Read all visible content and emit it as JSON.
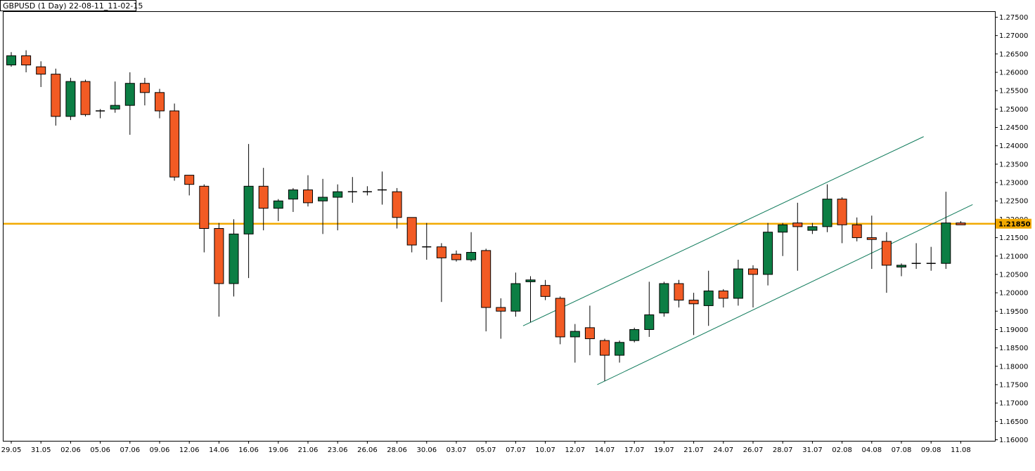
{
  "header": {
    "title": "GBPUSD (1 Day) 22-08-11_11-02-15"
  },
  "colors": {
    "bull": "#0c7e44",
    "bear": "#f25b24",
    "wick": "#000000",
    "channel": "#0e7a5a",
    "level": "#f2a900",
    "level_label_bg": "#f2a900",
    "border": "#000000"
  },
  "chart_data": {
    "type": "candlestick",
    "symbol": "GBPUSD",
    "timeframe": "1 Day",
    "ylim": [
      1.1575,
      1.2775
    ],
    "y_ticks": [
      "1.16000",
      "1.16500",
      "1.17000",
      "1.17500",
      "1.18000",
      "1.18500",
      "1.19000",
      "1.19500",
      "1.20000",
      "1.20500",
      "1.21000",
      "1.21500",
      "1.22000",
      "1.22500",
      "1.23000",
      "1.23500",
      "1.24000",
      "1.24500",
      "1.25000",
      "1.25500",
      "1.26000",
      "1.26500",
      "1.27000",
      "1.27500"
    ],
    "x_labels": [
      {
        "i": 0,
        "label": "29.05"
      },
      {
        "i": 2,
        "label": "31.05"
      },
      {
        "i": 4,
        "label": "02.06"
      },
      {
        "i": 6,
        "label": "05.06"
      },
      {
        "i": 8,
        "label": "07.06"
      },
      {
        "i": 10,
        "label": "09.06"
      },
      {
        "i": 12,
        "label": "12.06"
      },
      {
        "i": 14,
        "label": "14.06"
      },
      {
        "i": 16,
        "label": "16.06"
      },
      {
        "i": 18,
        "label": "19.06"
      },
      {
        "i": 20,
        "label": "21.06"
      },
      {
        "i": 22,
        "label": "23.06"
      },
      {
        "i": 24,
        "label": "26.06"
      },
      {
        "i": 26,
        "label": "28.06"
      },
      {
        "i": 28,
        "label": "30.06"
      },
      {
        "i": 30,
        "label": "03.07"
      },
      {
        "i": 32,
        "label": "05.07"
      },
      {
        "i": 34,
        "label": "07.07"
      },
      {
        "i": 36,
        "label": "10.07"
      },
      {
        "i": 38,
        "label": "12.07"
      },
      {
        "i": 40,
        "label": "14.07"
      },
      {
        "i": 42,
        "label": "17.07"
      },
      {
        "i": 44,
        "label": "19.07"
      },
      {
        "i": 46,
        "label": "21.07"
      },
      {
        "i": 48,
        "label": "24.07"
      },
      {
        "i": 50,
        "label": "26.07"
      },
      {
        "i": 52,
        "label": "28.07"
      },
      {
        "i": 54,
        "label": "31.07"
      },
      {
        "i": 56,
        "label": "02.08"
      },
      {
        "i": 58,
        "label": "04.08"
      },
      {
        "i": 60,
        "label": "07.08"
      },
      {
        "i": 62,
        "label": "09.08"
      },
      {
        "i": 64,
        "label": "11.08"
      }
    ],
    "candles": [
      {
        "o": 1.262,
        "h": 1.2655,
        "l": 1.2615,
        "c": 1.2645
      },
      {
        "o": 1.2645,
        "h": 1.266,
        "l": 1.26,
        "c": 1.262
      },
      {
        "o": 1.2615,
        "h": 1.263,
        "l": 1.256,
        "c": 1.2595
      },
      {
        "o": 1.2595,
        "h": 1.261,
        "l": 1.2455,
        "c": 1.248
      },
      {
        "o": 1.248,
        "h": 1.2585,
        "l": 1.247,
        "c": 1.2575
      },
      {
        "o": 1.2575,
        "h": 1.258,
        "l": 1.248,
        "c": 1.2485
      },
      {
        "o": 1.2495,
        "h": 1.25,
        "l": 1.2475,
        "c": 1.2495
      },
      {
        "o": 1.25,
        "h": 1.2575,
        "l": 1.249,
        "c": 1.251
      },
      {
        "o": 1.251,
        "h": 1.26,
        "l": 1.243,
        "c": 1.257
      },
      {
        "o": 1.257,
        "h": 1.2585,
        "l": 1.251,
        "c": 1.2545
      },
      {
        "o": 1.2545,
        "h": 1.2555,
        "l": 1.2475,
        "c": 1.2495
      },
      {
        "o": 1.2495,
        "h": 1.2515,
        "l": 1.2305,
        "c": 1.2315
      },
      {
        "o": 1.232,
        "h": 1.232,
        "l": 1.2265,
        "c": 1.2295
      },
      {
        "o": 1.229,
        "h": 1.2295,
        "l": 1.211,
        "c": 1.2175
      },
      {
        "o": 1.2175,
        "h": 1.219,
        "l": 1.1935,
        "c": 1.2025
      },
      {
        "o": 1.2025,
        "h": 1.22,
        "l": 1.199,
        "c": 1.216
      },
      {
        "o": 1.216,
        "h": 1.2405,
        "l": 1.204,
        "c": 1.229
      },
      {
        "o": 1.229,
        "h": 1.234,
        "l": 1.217,
        "c": 1.223
      },
      {
        "o": 1.223,
        "h": 1.2255,
        "l": 1.2195,
        "c": 1.225
      },
      {
        "o": 1.2255,
        "h": 1.2285,
        "l": 1.222,
        "c": 1.228
      },
      {
        "o": 1.228,
        "h": 1.232,
        "l": 1.2235,
        "c": 1.2245
      },
      {
        "o": 1.225,
        "h": 1.231,
        "l": 1.216,
        "c": 1.226
      },
      {
        "o": 1.226,
        "h": 1.2295,
        "l": 1.217,
        "c": 1.2275
      },
      {
        "o": 1.2275,
        "h": 1.2315,
        "l": 1.2245,
        "c": 1.2275
      },
      {
        "o": 1.2275,
        "h": 1.229,
        "l": 1.2265,
        "c": 1.2275
      },
      {
        "o": 1.228,
        "h": 1.233,
        "l": 1.224,
        "c": 1.228
      },
      {
        "o": 1.2275,
        "h": 1.2285,
        "l": 1.2175,
        "c": 1.2205
      },
      {
        "o": 1.2205,
        "h": 1.2205,
        "l": 1.211,
        "c": 1.213
      },
      {
        "o": 1.2125,
        "h": 1.219,
        "l": 1.209,
        "c": 1.2125
      },
      {
        "o": 1.2125,
        "h": 1.2135,
        "l": 1.1975,
        "c": 1.2095
      },
      {
        "o": 1.2105,
        "h": 1.2115,
        "l": 1.2085,
        "c": 1.209
      },
      {
        "o": 1.209,
        "h": 1.2165,
        "l": 1.2085,
        "c": 1.211
      },
      {
        "o": 1.2115,
        "h": 1.212,
        "l": 1.1895,
        "c": 1.196
      },
      {
        "o": 1.196,
        "h": 1.1985,
        "l": 1.1875,
        "c": 1.195
      },
      {
        "o": 1.195,
        "h": 1.2055,
        "l": 1.1935,
        "c": 1.2025
      },
      {
        "o": 1.203,
        "h": 1.2045,
        "l": 1.192,
        "c": 1.2035
      },
      {
        "o": 1.202,
        "h": 1.2035,
        "l": 1.198,
        "c": 1.199
      },
      {
        "o": 1.1985,
        "h": 1.199,
        "l": 1.186,
        "c": 1.188
      },
      {
        "o": 1.188,
        "h": 1.1915,
        "l": 1.181,
        "c": 1.1895
      },
      {
        "o": 1.1905,
        "h": 1.1965,
        "l": 1.183,
        "c": 1.1875
      },
      {
        "o": 1.187,
        "h": 1.1875,
        "l": 1.176,
        "c": 1.183
      },
      {
        "o": 1.183,
        "h": 1.187,
        "l": 1.181,
        "c": 1.1865
      },
      {
        "o": 1.187,
        "h": 1.1905,
        "l": 1.1865,
        "c": 1.19
      },
      {
        "o": 1.19,
        "h": 1.203,
        "l": 1.188,
        "c": 1.194
      },
      {
        "o": 1.1945,
        "h": 1.203,
        "l": 1.1935,
        "c": 1.2025
      },
      {
        "o": 1.2025,
        "h": 1.2035,
        "l": 1.196,
        "c": 1.198
      },
      {
        "o": 1.198,
        "h": 1.2,
        "l": 1.1885,
        "c": 1.197
      },
      {
        "o": 1.1965,
        "h": 1.206,
        "l": 1.191,
        "c": 1.2005
      },
      {
        "o": 1.2005,
        "h": 1.201,
        "l": 1.196,
        "c": 1.1985
      },
      {
        "o": 1.1985,
        "h": 1.209,
        "l": 1.1965,
        "c": 1.2065
      },
      {
        "o": 1.2065,
        "h": 1.2075,
        "l": 1.196,
        "c": 1.205
      },
      {
        "o": 1.205,
        "h": 1.219,
        "l": 1.202,
        "c": 1.2165
      },
      {
        "o": 1.2165,
        "h": 1.219,
        "l": 1.21,
        "c": 1.2185
      },
      {
        "o": 1.219,
        "h": 1.2245,
        "l": 1.206,
        "c": 1.218
      },
      {
        "o": 1.217,
        "h": 1.219,
        "l": 1.216,
        "c": 1.218
      },
      {
        "o": 1.218,
        "h": 1.2295,
        "l": 1.2165,
        "c": 1.2255
      },
      {
        "o": 1.2255,
        "h": 1.226,
        "l": 1.2135,
        "c": 1.2185
      },
      {
        "o": 1.2185,
        "h": 1.2205,
        "l": 1.214,
        "c": 1.215
      },
      {
        "o": 1.215,
        "h": 1.221,
        "l": 1.2065,
        "c": 1.2145
      },
      {
        "o": 1.214,
        "h": 1.2165,
        "l": 1.2,
        "c": 1.2075
      },
      {
        "o": 1.207,
        "h": 1.208,
        "l": 1.2045,
        "c": 1.2075
      },
      {
        "o": 1.208,
        "h": 1.2135,
        "l": 1.2065,
        "c": 1.208
      },
      {
        "o": 1.208,
        "h": 1.2125,
        "l": 1.206,
        "c": 1.208
      },
      {
        "o": 1.208,
        "h": 1.2275,
        "l": 1.2065,
        "c": 1.219
      },
      {
        "o": 1.219,
        "h": 1.2195,
        "l": 1.2185,
        "c": 1.2185
      }
    ],
    "current_price_label": "1.21850",
    "horizontal_level": 1.2188,
    "channel_lines": [
      {
        "from": {
          "i": 34.5,
          "price": 1.191
        },
        "to": {
          "i": 61.5,
          "price": 1.2425
        }
      },
      {
        "from": {
          "i": 39.5,
          "price": 1.175
        },
        "to": {
          "i": 64.8,
          "price": 1.224
        }
      }
    ],
    "grid": false
  }
}
